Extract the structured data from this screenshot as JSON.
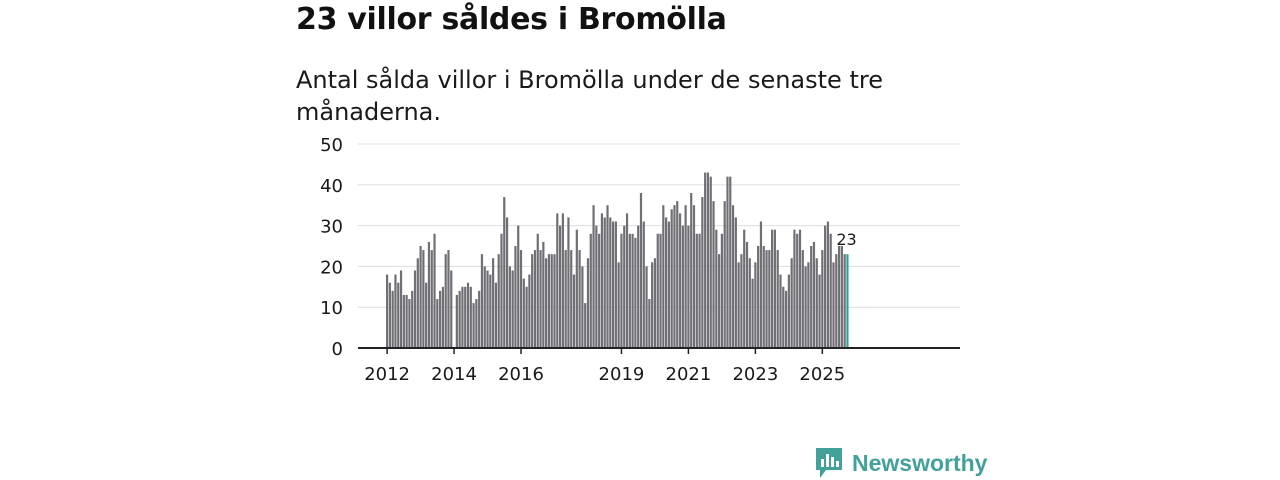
{
  "title": "23 villor såldes i Bromölla",
  "subtitle": "Antal sålda villor i Bromölla under de senaste tre månaderna.",
  "brand": "Newsworthy",
  "colors": {
    "bar": "#6f6f75",
    "highlight": "#2aa39b",
    "grid": "#dddddd",
    "axis": "#222222",
    "brand": "#42a29a"
  },
  "chart_data": {
    "type": "bar",
    "title": "23 villor såldes i Bromölla",
    "xlabel": "",
    "ylabel": "",
    "ylim": [
      0,
      50
    ],
    "yticks": [
      0,
      10,
      20,
      30,
      40,
      50
    ],
    "grid": true,
    "start": "2012-01",
    "x_tick_labels": [
      {
        "label": "2012",
        "index": 0
      },
      {
        "label": "2014",
        "index": 24
      },
      {
        "label": "2016",
        "index": 48
      },
      {
        "label": "2019",
        "index": 84
      },
      {
        "label": "2021",
        "index": 108
      },
      {
        "label": "2023",
        "index": 132
      },
      {
        "label": "2025",
        "index": 156
      }
    ],
    "highlight_label": "23",
    "values": [
      18,
      16,
      14,
      18,
      16,
      19,
      13,
      13,
      12,
      14,
      19,
      22,
      25,
      24,
      16,
      26,
      24,
      28,
      12,
      14,
      15,
      23,
      24,
      19,
      0,
      13,
      14,
      15,
      15,
      16,
      15,
      11,
      12,
      14,
      23,
      20,
      19,
      18,
      22,
      16,
      23,
      28,
      37,
      32,
      20,
      19,
      25,
      30,
      24,
      17,
      15,
      18,
      23,
      24,
      28,
      24,
      26,
      22,
      23,
      23,
      23,
      33,
      30,
      33,
      24,
      32,
      24,
      18,
      29,
      24,
      20,
      11,
      22,
      28,
      35,
      30,
      28,
      33,
      32,
      35,
      32,
      31,
      31,
      21,
      28,
      30,
      33,
      28,
      28,
      27,
      30,
      38,
      31,
      20,
      12,
      21,
      22,
      28,
      28,
      35,
      32,
      31,
      34,
      35,
      36,
      33,
      30,
      35,
      30,
      38,
      35,
      28,
      28,
      37,
      43,
      43,
      42,
      36,
      29,
      23,
      28,
      36,
      42,
      42,
      35,
      32,
      21,
      23,
      29,
      26,
      22,
      17,
      21,
      25,
      31,
      25,
      24,
      24,
      29,
      29,
      24,
      18,
      15,
      14,
      18,
      22,
      29,
      28,
      29,
      24,
      20,
      21,
      25,
      26,
      22,
      18,
      24,
      30,
      31,
      28,
      21,
      23,
      25,
      25,
      23,
      23
    ]
  }
}
